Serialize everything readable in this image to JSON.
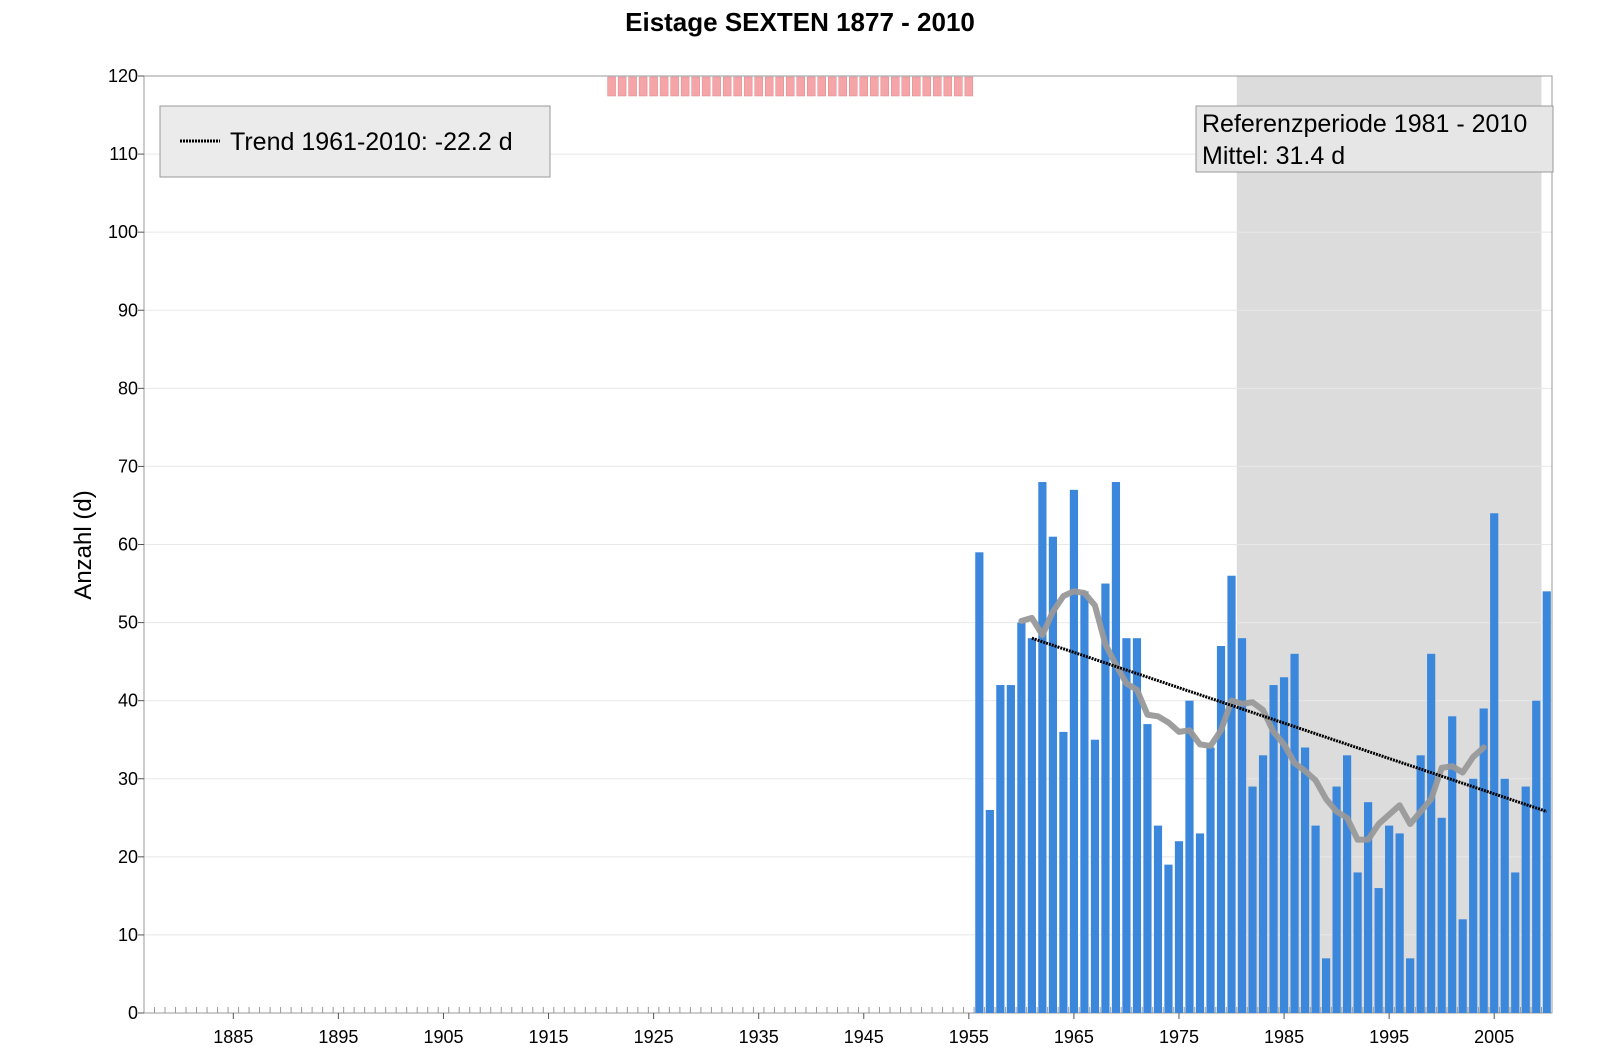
{
  "chart_data": {
    "type": "bar",
    "title": "Eistage SEXTEN 1877 - 2010",
    "ylabel": "Anzahl (d)",
    "xlabel": "",
    "xlim": [
      1877,
      2010
    ],
    "ylim": [
      0,
      120
    ],
    "yticks": [
      0,
      10,
      20,
      30,
      40,
      50,
      60,
      70,
      80,
      90,
      100,
      110,
      120
    ],
    "xticks": [
      1885,
      1895,
      1905,
      1915,
      1925,
      1935,
      1945,
      1955,
      1965,
      1975,
      1985,
      1995,
      2005
    ],
    "grid": true,
    "bar_color": "#3b87dc",
    "series": [
      {
        "x": [
          1956,
          1957,
          1958,
          1959,
          1960,
          1961,
          1962,
          1963,
          1964,
          1965,
          1966,
          1967,
          1968,
          1969,
          1970,
          1971,
          1972,
          1973,
          1974,
          1975,
          1976,
          1977,
          1978,
          1979,
          1980,
          1981,
          1982,
          1983,
          1984,
          1985,
          1986,
          1987,
          1988,
          1989,
          1990,
          1991,
          1992,
          1993,
          1994,
          1995,
          1996,
          1997,
          1998,
          1999,
          2000,
          2001,
          2002,
          2003,
          2004,
          2005,
          2006,
          2007,
          2008,
          2009,
          2010
        ],
        "values": [
          59,
          26,
          42,
          42,
          50,
          48,
          68,
          61,
          36,
          67,
          54,
          35,
          55,
          68,
          48,
          48,
          37,
          24,
          19,
          22,
          40,
          23,
          34,
          47,
          56,
          48,
          29,
          33,
          42,
          43,
          46,
          34,
          24,
          7,
          29,
          33,
          18,
          27,
          16,
          24,
          23,
          7,
          33,
          46,
          25,
          38,
          12,
          30,
          39,
          64,
          30,
          18,
          29,
          40,
          54
        ]
      }
    ],
    "smoothed": {
      "color": "#999999",
      "x": [
        1960,
        1961,
        1962,
        1963,
        1964,
        1965,
        1966,
        1967,
        1968,
        1969,
        1970,
        1971,
        1972,
        1973,
        1974,
        1975,
        1976,
        1977,
        1978,
        1979,
        1980,
        1981,
        1982,
        1983,
        1984,
        1985,
        1986,
        1987,
        1988,
        1989,
        1990,
        1991,
        1992,
        1993,
        1994,
        1995,
        1996,
        1997,
        1998,
        1999,
        2000,
        2001,
        2002,
        2003,
        2004
      ],
      "values": [
        50.2,
        50.6,
        48.4,
        51.4,
        53.4,
        54.0,
        53.8,
        52.2,
        47.2,
        44.6,
        42.2,
        41.4,
        38.2,
        38.0,
        37.2,
        36.0,
        36.2,
        34.4,
        34.2,
        36.2,
        40.0,
        39.6,
        39.8,
        38.8,
        36.0,
        34.4,
        32.0,
        31.0,
        29.8,
        27.4,
        25.8,
        25.0,
        22.2,
        22.2,
        24.2,
        25.4,
        26.6,
        24.2,
        25.8,
        27.4,
        31.4,
        31.6,
        30.8,
        32.8,
        34.0
      ]
    },
    "trend": {
      "label": "Trend 1961-2010: -22.2 d",
      "x": [
        1961,
        2010
      ],
      "values": [
        48.0,
        25.8
      ]
    },
    "reference_period": {
      "from": 1981,
      "to": 2010,
      "line1": "Referenzperiode 1981 - 2010",
      "line2": "Mittel: 31.4 d"
    },
    "missing_markers": {
      "color": "#f5a5a8",
      "from": 1921,
      "to": 1955
    }
  }
}
